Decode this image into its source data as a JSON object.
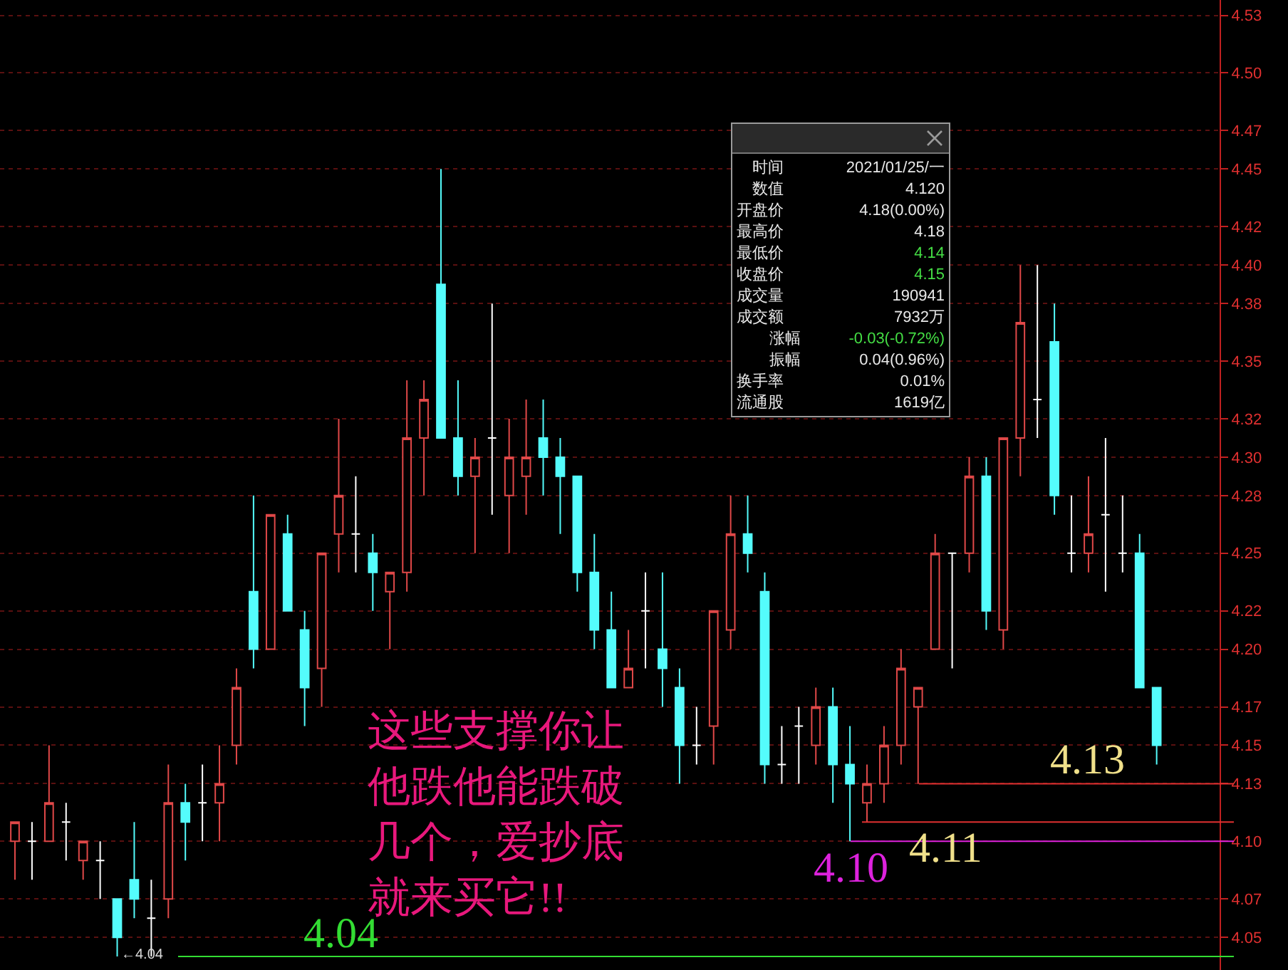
{
  "chart_data": [
    {
      "type": "candlestick",
      "categories": [
        null,
        null,
        null,
        null,
        null,
        null,
        null,
        null,
        null,
        null,
        null,
        null,
        null,
        null,
        null,
        null,
        null,
        null,
        null,
        null,
        null,
        null,
        null,
        null,
        null,
        null,
        null,
        null,
        null,
        null,
        null,
        null,
        null,
        null,
        null,
        null,
        null,
        null,
        null,
        null,
        null,
        null,
        null,
        null,
        null,
        null,
        null,
        null,
        null,
        null,
        null,
        null,
        null,
        null,
        null,
        null,
        null,
        null,
        null,
        null,
        null,
        null,
        null,
        null,
        null,
        null,
        null,
        null
      ],
      "ohlc": [
        [
          4.1,
          4.11,
          4.08,
          4.11
        ],
        [
          4.1,
          4.11,
          4.08,
          4.1
        ],
        [
          4.1,
          4.15,
          4.1,
          4.12
        ],
        [
          4.11,
          4.12,
          4.09,
          4.11
        ],
        [
          4.09,
          4.1,
          4.08,
          4.1
        ],
        [
          4.09,
          4.1,
          4.07,
          4.09
        ],
        [
          4.07,
          4.07,
          4.04,
          4.05
        ],
        [
          4.08,
          4.11,
          4.06,
          4.07
        ],
        [
          4.06,
          4.08,
          4.04,
          4.06
        ],
        [
          4.07,
          4.14,
          4.06,
          4.12
        ],
        [
          4.12,
          4.13,
          4.09,
          4.11
        ],
        [
          4.12,
          4.14,
          4.1,
          4.12
        ],
        [
          4.12,
          4.15,
          4.1,
          4.13
        ],
        [
          4.15,
          4.19,
          4.14,
          4.18
        ],
        [
          4.23,
          4.28,
          4.19,
          4.2
        ],
        [
          4.2,
          4.27,
          4.2,
          4.27
        ],
        [
          4.26,
          4.27,
          4.22,
          4.22
        ],
        [
          4.21,
          4.22,
          4.16,
          4.18
        ],
        [
          4.19,
          4.25,
          4.17,
          4.25
        ],
        [
          4.26,
          4.32,
          4.24,
          4.28
        ],
        [
          4.26,
          4.29,
          4.24,
          4.26
        ],
        [
          4.25,
          4.26,
          4.22,
          4.24
        ],
        [
          4.23,
          4.24,
          4.2,
          4.24
        ],
        [
          4.24,
          4.34,
          4.23,
          4.31
        ],
        [
          4.31,
          4.34,
          4.28,
          4.33
        ],
        [
          4.39,
          4.45,
          4.31,
          4.31
        ],
        [
          4.31,
          4.34,
          4.28,
          4.29
        ],
        [
          4.29,
          4.31,
          4.25,
          4.3
        ],
        [
          4.31,
          4.38,
          4.27,
          4.31
        ],
        [
          4.28,
          4.32,
          4.25,
          4.3
        ],
        [
          4.29,
          4.33,
          4.27,
          4.3
        ],
        [
          4.31,
          4.33,
          4.28,
          4.3
        ],
        [
          4.3,
          4.31,
          4.26,
          4.29
        ],
        [
          4.29,
          4.29,
          4.23,
          4.24
        ],
        [
          4.24,
          4.26,
          4.2,
          4.21
        ],
        [
          4.21,
          4.23,
          4.18,
          4.18
        ],
        [
          4.18,
          4.21,
          4.18,
          4.19
        ],
        [
          4.22,
          4.24,
          4.19,
          4.22
        ],
        [
          4.2,
          4.24,
          4.17,
          4.19
        ],
        [
          4.18,
          4.19,
          4.13,
          4.15
        ],
        [
          4.15,
          4.17,
          4.14,
          4.15
        ],
        [
          4.16,
          4.22,
          4.14,
          4.22
        ],
        [
          4.21,
          4.28,
          4.2,
          4.26
        ],
        [
          4.26,
          4.28,
          4.24,
          4.25
        ],
        [
          4.23,
          4.24,
          4.13,
          4.14
        ],
        [
          4.14,
          4.16,
          4.13,
          4.14
        ],
        [
          4.16,
          4.17,
          4.13,
          4.16
        ],
        [
          4.15,
          4.18,
          4.14,
          4.17
        ],
        [
          4.17,
          4.18,
          4.12,
          4.14
        ],
        [
          4.14,
          4.16,
          4.1,
          4.13
        ],
        [
          4.12,
          4.14,
          4.11,
          4.13
        ],
        [
          4.13,
          4.16,
          4.12,
          4.15
        ],
        [
          4.15,
          4.2,
          4.14,
          4.19
        ],
        [
          4.17,
          4.18,
          4.13,
          4.18
        ],
        [
          4.2,
          4.26,
          4.2,
          4.25
        ],
        [
          4.25,
          4.25,
          4.19,
          4.25
        ],
        [
          4.25,
          4.3,
          4.24,
          4.29
        ],
        [
          4.29,
          4.3,
          4.21,
          4.22
        ],
        [
          4.21,
          4.31,
          4.2,
          4.31
        ],
        [
          4.31,
          4.4,
          4.29,
          4.37
        ],
        [
          4.33,
          4.4,
          4.31,
          4.33
        ],
        [
          4.36,
          4.38,
          4.27,
          4.28
        ],
        [
          4.25,
          4.28,
          4.24,
          4.25
        ],
        [
          4.25,
          4.29,
          4.24,
          4.26
        ],
        [
          4.27,
          4.31,
          4.23,
          4.27
        ],
        [
          4.25,
          4.28,
          4.24,
          4.25
        ],
        [
          4.25,
          4.26,
          4.18,
          4.18
        ],
        [
          4.18,
          4.18,
          4.14,
          4.15
        ]
      ],
      "colors": [
        "#e04848",
        "#ffffff",
        "#e04848",
        "#ffffff",
        "#e04848",
        "#ffffff",
        "#54fcfc",
        "#54fcfc",
        "#ffffff",
        "#e04848",
        "#54fcfc",
        "#ffffff",
        "#e04848",
        "#e04848",
        "#54fcfc",
        "#e04848",
        "#54fcfc",
        "#54fcfc",
        "#e04848",
        "#e04848",
        "#ffffff",
        "#54fcfc",
        "#e04848",
        "#e04848",
        "#e04848",
        "#54fcfc",
        "#54fcfc",
        "#e04848",
        "#ffffff",
        "#e04848",
        "#e04848",
        "#54fcfc",
        "#54fcfc",
        "#54fcfc",
        "#54fcfc",
        "#54fcfc",
        "#e04848",
        "#ffffff",
        "#54fcfc",
        "#54fcfc",
        "#ffffff",
        "#e04848",
        "#e04848",
        "#54fcfc",
        "#54fcfc",
        "#ffffff",
        "#ffffff",
        "#e04848",
        "#54fcfc",
        "#54fcfc",
        "#e04848",
        "#e04848",
        "#e04848",
        "#e04848",
        "#e04848",
        "#ffffff",
        "#e04848",
        "#54fcfc",
        "#e04848",
        "#e04848",
        "#ffffff",
        "#54fcfc",
        "#ffffff",
        "#e04848",
        "#ffffff",
        "#ffffff",
        "#54fcfc",
        "#54fcfc"
      ],
      "ylim": [
        4.033,
        4.538
      ],
      "yticks": [
        {
          "value": 4.05,
          "label": "4.05"
        },
        {
          "value": 4.07,
          "label": "4.07"
        },
        {
          "value": 4.1,
          "label": "4.10"
        },
        {
          "value": 4.13,
          "label": "4.13"
        },
        {
          "value": 4.15,
          "label": "4.15"
        },
        {
          "value": 4.17,
          "label": "4.17"
        },
        {
          "value": 4.2,
          "label": "4.20"
        },
        {
          "value": 4.22,
          "label": "4.22"
        },
        {
          "value": 4.25,
          "label": "4.25"
        },
        {
          "value": 4.28,
          "label": "4.28"
        },
        {
          "value": 4.3,
          "label": "4.30"
        },
        {
          "value": 4.32,
          "label": "4.32"
        },
        {
          "value": 4.35,
          "label": "4.35"
        },
        {
          "value": 4.38,
          "label": "4.38"
        },
        {
          "value": 4.4,
          "label": "4.40"
        },
        {
          "value": 4.42,
          "label": "4.42"
        },
        {
          "value": 4.45,
          "label": "4.45"
        },
        {
          "value": 4.47,
          "label": "4.47"
        },
        {
          "value": 4.5,
          "label": "4.50"
        },
        {
          "value": 4.53,
          "label": "4.53"
        }
      ],
      "grid": "y",
      "ref_lines": [
        {
          "axis": "y",
          "value": 4.04,
          "label": "4.04",
          "color": "#33dd33"
        },
        {
          "axis": "y",
          "value": 4.1,
          "label": "4.10",
          "color": "#dd22dd"
        },
        {
          "axis": "y",
          "value": 4.11,
          "label": "4.11",
          "color": "#e03030"
        },
        {
          "axis": "y",
          "value": 4.13,
          "label": "4.13",
          "color": "#e03030"
        }
      ],
      "annotations": [
        "这些支撑你让他跌他能跌破几个，爱抄底就来买它!!",
        "←4.04"
      ]
    },
    {
      "type": "other",
      "annotations": [
        "时间",
        "2021/01/25/一",
        "数值",
        "4.120",
        "开盘价",
        "4.18(0.00%)",
        "最高价",
        "4.18",
        "最低价",
        "4.14",
        "收盘价",
        "4.15",
        "成交量",
        "190941",
        "成交额",
        "7932万",
        "涨幅",
        "-0.03(-0.72%)",
        "振幅",
        "0.04(0.96%)",
        "换手率",
        "0.01%",
        "流通股",
        "1619亿"
      ]
    }
  ]
}
